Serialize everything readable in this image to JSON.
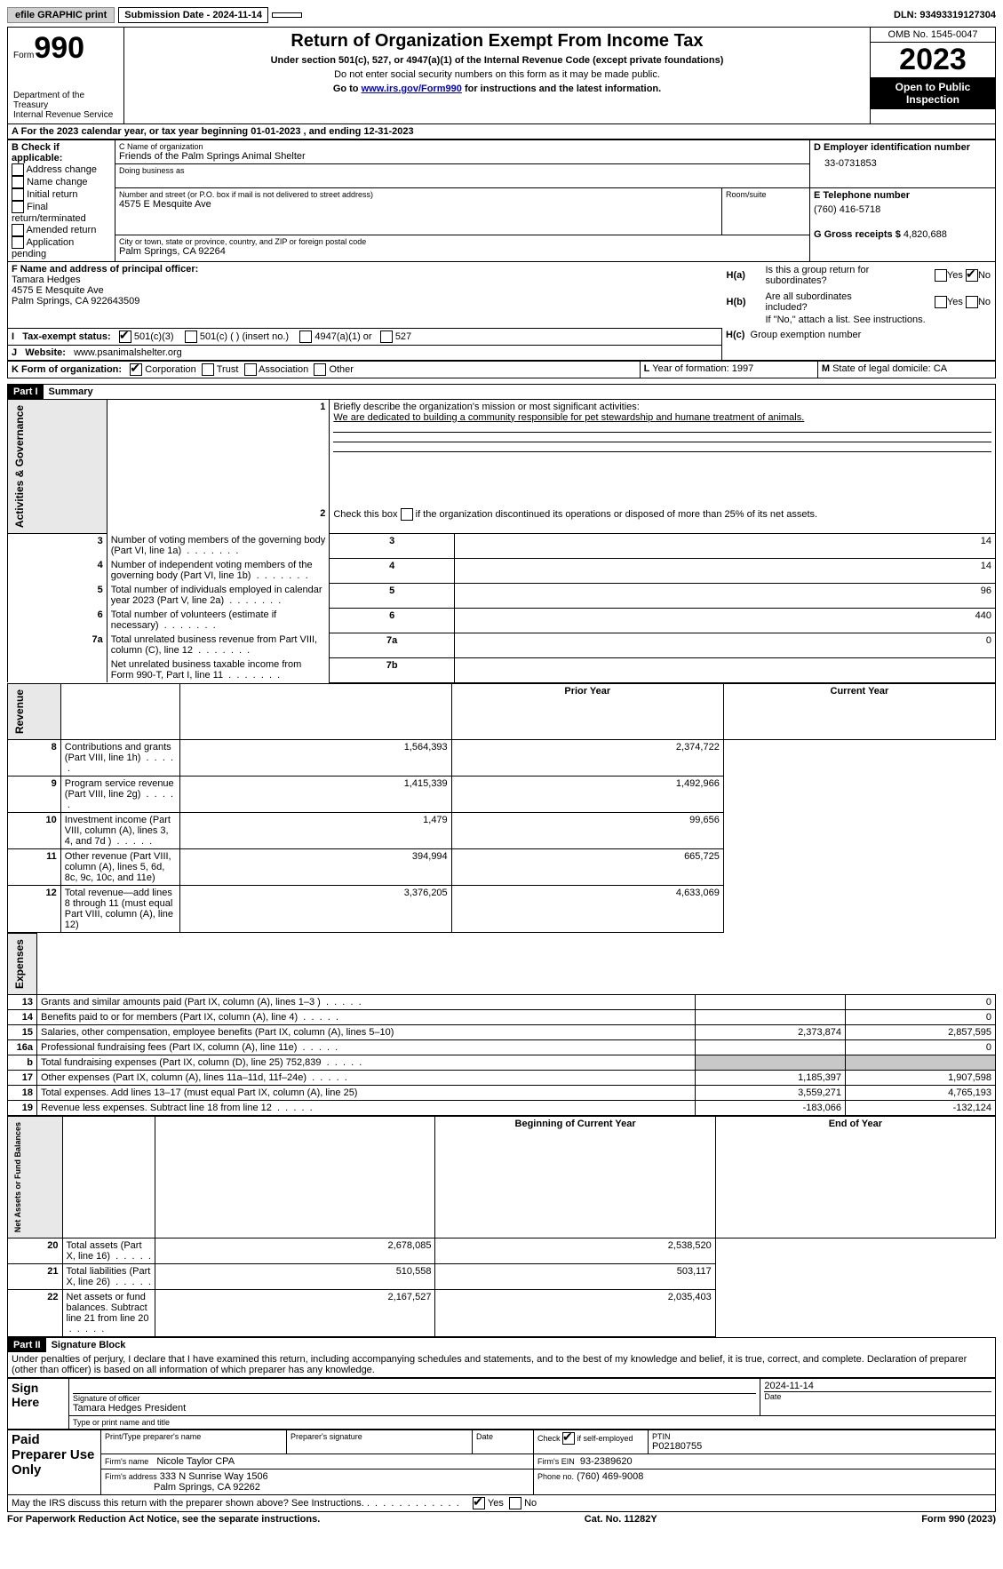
{
  "top": {
    "efile": "efile GRAPHIC print",
    "submission": "Submission Date - 2024-11-14",
    "dln_label": "DLN:",
    "dln": "93493319127304"
  },
  "header": {
    "form_word": "Form",
    "form_num": "990",
    "dept1": "Department of the Treasury",
    "dept2": "Internal Revenue Service",
    "title": "Return of Organization Exempt From Income Tax",
    "sub1": "Under section 501(c), 527, or 4947(a)(1) of the Internal Revenue Code (except private foundations)",
    "sub2": "Do not enter social security numbers on this form as it may be made public.",
    "sub3a": "Go to ",
    "sub3link": "www.irs.gov/Form990",
    "sub3b": " for instructions and the latest information.",
    "omb": "OMB No. 1545-0047",
    "year": "2023",
    "openpub": "Open to Public Inspection"
  },
  "A": {
    "line": "For the 2023 calendar year, or tax year beginning 01-01-2023   , and ending 12-31-2023"
  },
  "B": {
    "label": "B Check if applicable:",
    "items": [
      "Address change",
      "Name change",
      "Initial return",
      "Final return/terminated",
      "Amended return",
      "Application pending"
    ]
  },
  "C": {
    "name_lbl": "C Name of organization",
    "name": "Friends of the Palm Springs Animal Shelter",
    "dba_lbl": "Doing business as",
    "street_lbl": "Number and street (or P.O. box if mail is not delivered to street address)",
    "room_lbl": "Room/suite",
    "street": "4575 E Mesquite Ave",
    "city_lbl": "City or town, state or province, country, and ZIP or foreign postal code",
    "city": "Palm Springs, CA  92264"
  },
  "D": {
    "lbl": "D Employer identification number",
    "val": "33-0731853"
  },
  "E": {
    "lbl": "E Telephone number",
    "val": "(760) 416-5718"
  },
  "G": {
    "lbl": "G Gross receipts $",
    "val": "4,820,688"
  },
  "F": {
    "lbl": "F  Name and address of principal officer:",
    "name": "Tamara Hedges",
    "addr1": "4575 E Mesquite Ave",
    "addr2": "Palm Springs, CA  922643509"
  },
  "H": {
    "a": "Is this a group return for subordinates?",
    "b": "Are all subordinates included?",
    "bnote": "If \"No,\" attach a list. See instructions.",
    "c": "Group exemption number",
    "yes": "Yes",
    "no": "No"
  },
  "I": {
    "lbl": "Tax-exempt status:",
    "opts": [
      "501(c)(3)",
      "501(c) (  ) (insert no.)",
      "4947(a)(1) or",
      "527"
    ]
  },
  "J": {
    "lbl": "Website:",
    "val": "www.psanimalshelter.org"
  },
  "K": {
    "lbl": "Form of organization:",
    "opts": [
      "Corporation",
      "Trust",
      "Association",
      "Other"
    ]
  },
  "L": {
    "lbl": "Year of formation:",
    "val": "1997"
  },
  "M": {
    "lbl": "State of legal domicile:",
    "val": "CA"
  },
  "part1": {
    "hdr": "Part I",
    "title": "Summary",
    "l1": "Briefly describe the organization's mission or most significant activities:",
    "l1v": "We are dedicated to building a community responsible for pet stewardship and humane treatment of animals.",
    "l2": "Check this box        if the organization discontinued its operations or disposed of more than 25% of its net assets.",
    "rows": [
      {
        "n": "3",
        "t": "Number of voting members of the governing body (Part VI, line 1a)",
        "k": "3",
        "v": "14"
      },
      {
        "n": "4",
        "t": "Number of independent voting members of the governing body (Part VI, line 1b)",
        "k": "4",
        "v": "14"
      },
      {
        "n": "5",
        "t": "Total number of individuals employed in calendar year 2023 (Part V, line 2a)",
        "k": "5",
        "v": "96"
      },
      {
        "n": "6",
        "t": "Total number of volunteers (estimate if necessary)",
        "k": "6",
        "v": "440"
      },
      {
        "n": "7a",
        "t": "Total unrelated business revenue from Part VIII, column (C), line 12",
        "k": "7a",
        "v": "0"
      },
      {
        "n": "",
        "t": "Net unrelated business taxable income from Form 990-T, Part I, line 11",
        "k": "7b",
        "v": ""
      }
    ],
    "prior": "Prior Year",
    "current": "Current Year",
    "rev": [
      {
        "n": "8",
        "t": "Contributions and grants (Part VIII, line 1h)",
        "p": "1,564,393",
        "c": "2,374,722"
      },
      {
        "n": "9",
        "t": "Program service revenue (Part VIII, line 2g)",
        "p": "1,415,339",
        "c": "1,492,966"
      },
      {
        "n": "10",
        "t": "Investment income (Part VIII, column (A), lines 3, 4, and 7d )",
        "p": "1,479",
        "c": "99,656"
      },
      {
        "n": "11",
        "t": "Other revenue (Part VIII, column (A), lines 5, 6d, 8c, 9c, 10c, and 11e)",
        "p": "394,994",
        "c": "665,725"
      },
      {
        "n": "12",
        "t": "Total revenue—add lines 8 through 11 (must equal Part VIII, column (A), line 12)",
        "p": "3,376,205",
        "c": "4,633,069"
      }
    ],
    "exp": [
      {
        "n": "13",
        "t": "Grants and similar amounts paid (Part IX, column (A), lines 1–3 )",
        "p": "",
        "c": "0"
      },
      {
        "n": "14",
        "t": "Benefits paid to or for members (Part IX, column (A), line 4)",
        "p": "",
        "c": "0"
      },
      {
        "n": "15",
        "t": "Salaries, other compensation, employee benefits (Part IX, column (A), lines 5–10)",
        "p": "2,373,874",
        "c": "2,857,595"
      },
      {
        "n": "16a",
        "t": "Professional fundraising fees (Part IX, column (A), line 11e)",
        "p": "",
        "c": "0"
      },
      {
        "n": "b",
        "t": "Total fundraising expenses (Part IX, column (D), line 25) 752,839",
        "p": "GRAY",
        "c": "GRAY"
      },
      {
        "n": "17",
        "t": "Other expenses (Part IX, column (A), lines 11a–11d, 11f–24e)",
        "p": "1,185,397",
        "c": "1,907,598"
      },
      {
        "n": "18",
        "t": "Total expenses. Add lines 13–17 (must equal Part IX, column (A), line 25)",
        "p": "3,559,271",
        "c": "4,765,193"
      },
      {
        "n": "19",
        "t": "Revenue less expenses. Subtract line 18 from line 12",
        "p": "-183,066",
        "c": "-132,124"
      }
    ],
    "boy": "Beginning of Current Year",
    "eoy": "End of Year",
    "net": [
      {
        "n": "20",
        "t": "Total assets (Part X, line 16)",
        "p": "2,678,085",
        "c": "2,538,520"
      },
      {
        "n": "21",
        "t": "Total liabilities (Part X, line 26)",
        "p": "510,558",
        "c": "503,117"
      },
      {
        "n": "22",
        "t": "Net assets or fund balances. Subtract line 21 from line 20",
        "p": "2,167,527",
        "c": "2,035,403"
      }
    ],
    "vtabs": [
      "Activities & Governance",
      "Revenue",
      "Expenses",
      "Net Assets or Fund Balances"
    ]
  },
  "part2": {
    "hdr": "Part II",
    "title": "Signature Block",
    "decl": "Under penalties of perjury, I declare that I have examined this return, including accompanying schedules and statements, and to the best of my knowledge and belief, it is true, correct, and complete. Declaration of preparer (other than officer) is based on all information of which preparer has any knowledge.",
    "sign_here": "Sign Here",
    "sig_officer": "Signature of officer",
    "sig_date": "Date",
    "sig_date_val": "2024-11-14",
    "officer": "Tamara Hedges  President",
    "type_name": "Type or print name and title",
    "paid": "Paid Preparer Use Only",
    "prep_name": "Print/Type preparer's name",
    "prep_sig": "Preparer's signature",
    "date": "Date",
    "check_self": "Check         if self-employed",
    "ptin_lbl": "PTIN",
    "ptin": "P02180755",
    "firm_name_lbl": "Firm's name",
    "firm_name": "Nicole Taylor CPA",
    "firm_ein_lbl": "Firm's EIN",
    "firm_ein": "93-2389620",
    "firm_addr_lbl": "Firm's address",
    "firm_addr1": "333 N Sunrise Way 1506",
    "firm_addr2": "Palm Springs, CA  92262",
    "phone_lbl": "Phone no.",
    "phone": "(760) 469-9008",
    "discuss": "May the IRS discuss this return with the preparer shown above? See Instructions."
  },
  "footer": {
    "paperwork": "For Paperwork Reduction Act Notice, see the separate instructions.",
    "cat": "Cat. No. 11282Y",
    "formyr": "Form 990 (2023)"
  }
}
